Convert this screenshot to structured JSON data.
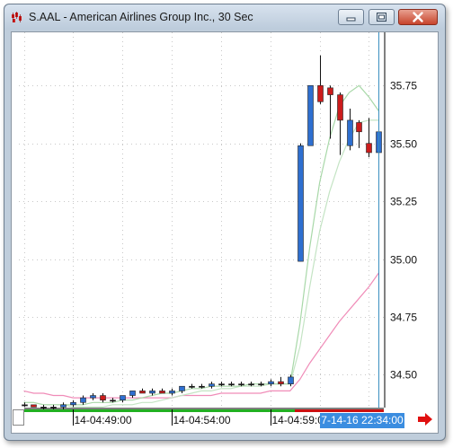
{
  "window": {
    "title": "S.AAL - American Airlines Group Inc., 30 Sec",
    "icons": [
      "app-icon",
      "minimize-icon",
      "maximize-icon",
      "close-icon"
    ]
  },
  "chart_data": {
    "type": "candlestick",
    "price_ticks": [
      "35.75",
      "35.50",
      "35.25",
      "35.00",
      "34.75",
      "34.50"
    ],
    "time_ticks": [
      "14-04:49:00",
      "14-04:54:00",
      "14-04:59:00"
    ],
    "cursor_time": "7-14-16 22:34:00",
    "ylim": [
      34.35,
      35.98
    ],
    "bar_count": 37,
    "candles": [
      {
        "o": 34.37,
        "h": 34.38,
        "l": 34.36,
        "c": 34.37
      },
      {
        "o": 34.37,
        "h": 34.37,
        "l": 34.36,
        "c": 34.36
      },
      {
        "o": 34.36,
        "h": 34.37,
        "l": 34.35,
        "c": 34.36
      },
      {
        "o": 34.36,
        "h": 34.37,
        "l": 34.35,
        "c": 34.36
      },
      {
        "o": 34.36,
        "h": 34.38,
        "l": 34.35,
        "c": 34.37
      },
      {
        "o": 34.37,
        "h": 34.39,
        "l": 34.36,
        "c": 34.38
      },
      {
        "o": 34.38,
        "h": 34.41,
        "l": 34.37,
        "c": 34.4
      },
      {
        "o": 34.4,
        "h": 34.42,
        "l": 34.39,
        "c": 34.41
      },
      {
        "o": 34.41,
        "h": 34.42,
        "l": 34.38,
        "c": 34.39
      },
      {
        "o": 34.39,
        "h": 34.4,
        "l": 34.38,
        "c": 34.39
      },
      {
        "o": 34.39,
        "h": 34.41,
        "l": 34.38,
        "c": 34.41
      },
      {
        "o": 34.41,
        "h": 34.43,
        "l": 34.4,
        "c": 34.43
      },
      {
        "o": 34.43,
        "h": 34.44,
        "l": 34.42,
        "c": 34.42
      },
      {
        "o": 34.42,
        "h": 34.44,
        "l": 34.41,
        "c": 34.43
      },
      {
        "o": 34.43,
        "h": 34.44,
        "l": 34.42,
        "c": 34.42
      },
      {
        "o": 34.42,
        "h": 34.44,
        "l": 34.41,
        "c": 34.43
      },
      {
        "o": 34.43,
        "h": 34.45,
        "l": 34.42,
        "c": 34.45
      },
      {
        "o": 34.45,
        "h": 34.46,
        "l": 34.44,
        "c": 34.45
      },
      {
        "o": 34.45,
        "h": 34.46,
        "l": 34.44,
        "c": 34.45
      },
      {
        "o": 34.45,
        "h": 34.47,
        "l": 34.44,
        "c": 34.46
      },
      {
        "o": 34.46,
        "h": 34.47,
        "l": 34.45,
        "c": 34.46
      },
      {
        "o": 34.46,
        "h": 34.47,
        "l": 34.45,
        "c": 34.46
      },
      {
        "o": 34.46,
        "h": 34.47,
        "l": 34.45,
        "c": 34.46
      },
      {
        "o": 34.46,
        "h": 34.47,
        "l": 34.45,
        "c": 34.46
      },
      {
        "o": 34.46,
        "h": 34.47,
        "l": 34.45,
        "c": 34.46
      },
      {
        "o": 34.46,
        "h": 34.48,
        "l": 34.45,
        "c": 34.47
      },
      {
        "o": 34.47,
        "h": 34.49,
        "l": 34.45,
        "c": 34.46
      },
      {
        "o": 34.46,
        "h": 34.5,
        "l": 34.45,
        "c": 34.49
      },
      {
        "o": 34.99,
        "h": 35.5,
        "l": 34.99,
        "c": 35.49
      },
      {
        "o": 35.49,
        "h": 35.75,
        "l": 35.49,
        "c": 35.75
      },
      {
        "o": 35.75,
        "h": 35.88,
        "l": 35.67,
        "c": 35.68
      },
      {
        "o": 35.74,
        "h": 35.75,
        "l": 35.52,
        "c": 35.71
      },
      {
        "o": 35.71,
        "h": 35.72,
        "l": 35.45,
        "c": 35.6
      },
      {
        "o": 35.49,
        "h": 35.65,
        "l": 35.47,
        "c": 35.6
      },
      {
        "o": 35.59,
        "h": 35.6,
        "l": 35.48,
        "c": 35.55
      },
      {
        "o": 35.5,
        "h": 35.61,
        "l": 35.44,
        "c": 35.46
      },
      {
        "o": 35.46,
        "h": 35.56,
        "l": 35.44,
        "c": 35.55
      }
    ],
    "ma_fast": [
      34.38,
      34.38,
      34.37,
      34.37,
      34.37,
      34.37,
      34.37,
      34.38,
      34.38,
      34.38,
      34.39,
      34.39,
      34.4,
      34.41,
      34.42,
      34.42,
      34.43,
      34.44,
      34.44,
      34.45,
      34.45,
      34.45,
      34.45,
      34.46,
      34.46,
      34.46,
      34.46,
      34.46,
      34.72,
      35.05,
      35.33,
      35.52,
      35.66,
      35.72,
      35.75,
      35.7,
      35.64
    ],
    "ma_slow": [
      34.38,
      34.38,
      34.37,
      34.37,
      34.37,
      34.36,
      34.36,
      34.36,
      34.36,
      34.37,
      34.37,
      34.37,
      34.38,
      34.38,
      34.39,
      34.4,
      34.41,
      34.42,
      34.43,
      34.43,
      34.44,
      34.44,
      34.45,
      34.45,
      34.45,
      34.46,
      34.46,
      34.46,
      34.62,
      34.88,
      35.12,
      35.29,
      35.42,
      35.52,
      35.59,
      35.6,
      35.6
    ],
    "ma_long": [
      34.43,
      34.42,
      34.42,
      34.41,
      34.41,
      34.4,
      34.4,
      34.4,
      34.4,
      34.4,
      34.4,
      34.4,
      34.4,
      34.4,
      34.4,
      34.4,
      34.41,
      34.41,
      34.41,
      34.41,
      34.42,
      34.42,
      34.42,
      34.42,
      34.42,
      34.43,
      34.43,
      34.43,
      34.48,
      34.55,
      34.61,
      34.67,
      34.73,
      34.78,
      34.83,
      34.88,
      34.94
    ],
    "colors": {
      "up_candle": "#2e6fd0",
      "down_candle": "#cc1c1c",
      "doji": "#111111",
      "ma_fast": "#a8d8a8",
      "ma_slow": "#c4e4c4",
      "ma_long": "#f08cb8",
      "cursor_line": "#3a8fc0",
      "grid": "#c8c8c8",
      "volume_green": "#22b022",
      "volume_red": "#cc1010",
      "cursor_box": "#3b8de0"
    }
  }
}
